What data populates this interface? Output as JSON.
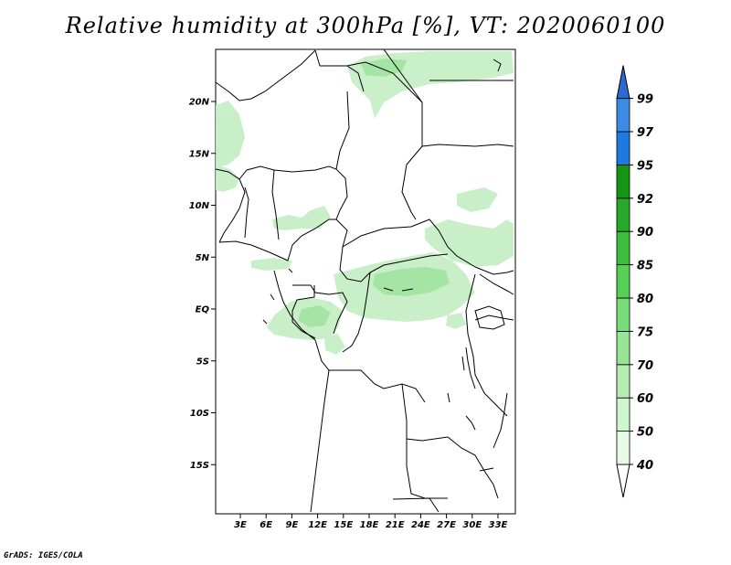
{
  "title": "Relative humidity at 300hPa [%], VT: 2020060100",
  "credit": "GrADS: IGES/COLA",
  "map": {
    "lat_labels": [
      {
        "lat": 20,
        "label": "20N"
      },
      {
        "lat": 15,
        "label": "15N"
      },
      {
        "lat": 10,
        "label": "10N"
      },
      {
        "lat": 5,
        "label": "5N"
      },
      {
        "lat": 0,
        "label": "EQ"
      },
      {
        "lat": -5,
        "label": "5S"
      },
      {
        "lat": -10,
        "label": "10S"
      },
      {
        "lat": -15,
        "label": "15S"
      }
    ],
    "lon_labels": [
      {
        "lon": 3,
        "label": "3E"
      },
      {
        "lon": 6,
        "label": "6E"
      },
      {
        "lon": 9,
        "label": "9E"
      },
      {
        "lon": 12,
        "label": "12E"
      },
      {
        "lon": 15,
        "label": "15E"
      },
      {
        "lon": 18,
        "label": "18E"
      },
      {
        "lon": 21,
        "label": "21E"
      },
      {
        "lon": 24,
        "label": "24E"
      },
      {
        "lon": 27,
        "label": "27E"
      },
      {
        "lon": 30,
        "label": "30E"
      },
      {
        "lon": 33,
        "label": "33E"
      }
    ]
  },
  "colorbar": {
    "levels": [
      "40",
      "50",
      "60",
      "70",
      "75",
      "80",
      "85",
      "90",
      "92",
      "95",
      "97",
      "99"
    ],
    "colors": [
      "#e6fae6",
      "#cff5cf",
      "#b4eeb4",
      "#96e696",
      "#78dc78",
      "#55d055",
      "#3cbd3c",
      "#28a828",
      "#149614",
      "#1c7ae0",
      "#3c8ce6",
      "#5aa0f0",
      "#2c6ad2"
    ]
  },
  "colors": {
    "green_light": "#c8f0c8",
    "green_mid": "#a8e6a8",
    "border": "#000000"
  }
}
